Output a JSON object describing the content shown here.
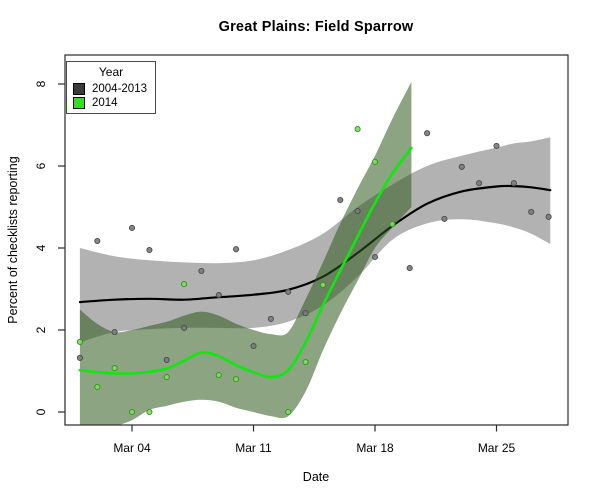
{
  "chart_data": {
    "type": "line",
    "title": "Great Plains: Field Sparrow",
    "xlabel": "Date",
    "ylabel": "Percent of checklists reporting",
    "background": "#ffffff",
    "grid": false,
    "x_axis": {
      "unit": "day of March",
      "tick_days": [
        4,
        11,
        18,
        25
      ],
      "tick_labels": [
        "Mar 04",
        "Mar 11",
        "Mar 18",
        "Mar 25"
      ],
      "range_days": [
        0.1,
        29.1
      ]
    },
    "y_axis": {
      "tick_values": [
        0,
        2,
        4,
        6,
        8
      ],
      "tick_labels": [
        "0",
        "2",
        "4",
        "6",
        "8"
      ],
      "range": [
        -0.32,
        8.7
      ]
    },
    "legend": {
      "title": "Year",
      "position": "top-left",
      "entries": [
        {
          "label": "2004-2013",
          "color": "#3a3a3a"
        },
        {
          "label": "2014",
          "color": "#2ee01e"
        }
      ]
    },
    "series": [
      {
        "name": "2004-2013",
        "line_color": "#000000",
        "line_width": 2.2,
        "band_color": "rgba(0,0,0,0.30)",
        "point_fill": "#7a7a7a",
        "point_stroke": "#4a4a4a",
        "smooth_line": [
          [
            1,
            2.68
          ],
          [
            3,
            2.74
          ],
          [
            5,
            2.76
          ],
          [
            7,
            2.74
          ],
          [
            9,
            2.8
          ],
          [
            11,
            2.86
          ],
          [
            13,
            2.98
          ],
          [
            15,
            3.3
          ],
          [
            17,
            3.88
          ],
          [
            19,
            4.54
          ],
          [
            21,
            5.08
          ],
          [
            23,
            5.38
          ],
          [
            25,
            5.5
          ],
          [
            26,
            5.51
          ],
          [
            27,
            5.48
          ],
          [
            28.1,
            5.41
          ]
        ],
        "confidence_band": [
          [
            1,
            1.7,
            4.0
          ],
          [
            3,
            1.95,
            3.8
          ],
          [
            5,
            2.02,
            3.7
          ],
          [
            7,
            2.05,
            3.65
          ],
          [
            9,
            2.05,
            3.63
          ],
          [
            11,
            2.05,
            3.7
          ],
          [
            13,
            2.2,
            3.95
          ],
          [
            15,
            2.6,
            4.35
          ],
          [
            17,
            3.3,
            5.0
          ],
          [
            19,
            4.2,
            5.55
          ],
          [
            21,
            4.6,
            6.0
          ],
          [
            23,
            4.7,
            6.25
          ],
          [
            25,
            4.6,
            6.45
          ],
          [
            26,
            4.5,
            6.55
          ],
          [
            27,
            4.35,
            6.6
          ],
          [
            28.1,
            4.1,
            6.7
          ]
        ],
        "points": [
          [
            1,
            1.32
          ],
          [
            2,
            4.17
          ],
          [
            3,
            1.95
          ],
          [
            4,
            4.49
          ],
          [
            5,
            3.95
          ],
          [
            6,
            1.27
          ],
          [
            7,
            2.05
          ],
          [
            8,
            3.44
          ],
          [
            9,
            2.85
          ],
          [
            10,
            3.97
          ],
          [
            11,
            1.61
          ],
          [
            12,
            2.27
          ],
          [
            13,
            2.93
          ],
          [
            14,
            2.41
          ],
          [
            16,
            5.17
          ],
          [
            17,
            4.9
          ],
          [
            18,
            3.78
          ],
          [
            20,
            3.51
          ],
          [
            21,
            6.8
          ],
          [
            22,
            4.71
          ],
          [
            23,
            5.98
          ],
          [
            24,
            5.58
          ],
          [
            25,
            6.49
          ],
          [
            26,
            5.58
          ],
          [
            27,
            4.88
          ],
          [
            28,
            4.76
          ]
        ]
      },
      {
        "name": "2014",
        "line_color": "#0fe80f",
        "line_width": 2.6,
        "band_color": "rgba(45,90,25,0.55)",
        "point_fill": "#7cdb63",
        "point_stroke": "#35921f",
        "smooth_line": [
          [
            1,
            1.02
          ],
          [
            2,
            0.97
          ],
          [
            3,
            0.94
          ],
          [
            4,
            0.94
          ],
          [
            5,
            0.98
          ],
          [
            6,
            1.06
          ],
          [
            7,
            1.25
          ],
          [
            8,
            1.45
          ],
          [
            9,
            1.36
          ],
          [
            10,
            1.14
          ],
          [
            11,
            0.97
          ],
          [
            12,
            0.85
          ],
          [
            13,
            1.02
          ],
          [
            14,
            1.7
          ],
          [
            15,
            2.6
          ],
          [
            16,
            3.45
          ],
          [
            17,
            4.28
          ],
          [
            18,
            5.1
          ],
          [
            19,
            5.82
          ],
          [
            20.1,
            6.44
          ]
        ],
        "confidence_band": [
          [
            1,
            -0.35,
            2.5
          ],
          [
            2,
            -0.45,
            2.15
          ],
          [
            3,
            -0.35,
            1.95
          ],
          [
            4,
            -0.2,
            2.0
          ],
          [
            5,
            0.05,
            2.1
          ],
          [
            6,
            0.15,
            2.2
          ],
          [
            7,
            0.25,
            2.35
          ],
          [
            8,
            0.3,
            2.45
          ],
          [
            9,
            0.25,
            2.35
          ],
          [
            10,
            0.1,
            2.15
          ],
          [
            11,
            0.0,
            2.0
          ],
          [
            12,
            -0.1,
            1.9
          ],
          [
            13,
            -0.1,
            1.95
          ],
          [
            14,
            0.5,
            2.75
          ],
          [
            15,
            1.5,
            3.65
          ],
          [
            16,
            2.4,
            4.6
          ],
          [
            17,
            3.2,
            5.45
          ],
          [
            18,
            4.0,
            6.25
          ],
          [
            19,
            4.5,
            7.15
          ],
          [
            20.1,
            5.0,
            8.05
          ]
        ],
        "points": [
          [
            1,
            1.71
          ],
          [
            2,
            0.61
          ],
          [
            3,
            1.07
          ],
          [
            4,
            0.0
          ],
          [
            5,
            0.0
          ],
          [
            6,
            0.85
          ],
          [
            7,
            3.12
          ],
          [
            9,
            0.9
          ],
          [
            10,
            0.8
          ],
          [
            13,
            0.0
          ],
          [
            14,
            1.22
          ],
          [
            15,
            3.1
          ],
          [
            17,
            6.9
          ],
          [
            18,
            6.1
          ],
          [
            19,
            4.58
          ]
        ]
      }
    ]
  }
}
